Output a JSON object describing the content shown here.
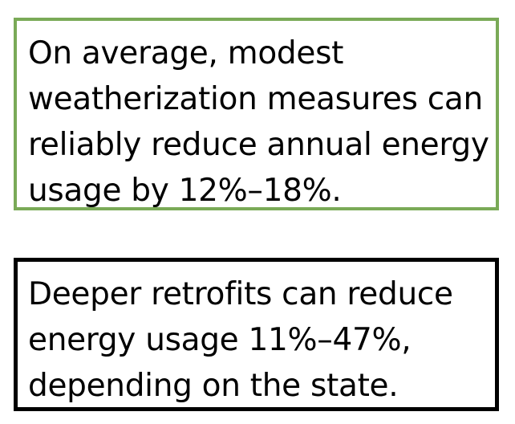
{
  "callouts": [
    {
      "id": "weatherization",
      "border_color": "#7aaa57",
      "lines": [
        "On average, modest",
        "weatherization measures can",
        "reliably reduce annual energy",
        "usage by 12%–18%."
      ]
    },
    {
      "id": "retrofits",
      "border_color": "#000000",
      "lines": [
        "Deeper retrofits can reduce",
        "energy usage 11%–47%,",
        "depending on the state."
      ]
    }
  ]
}
